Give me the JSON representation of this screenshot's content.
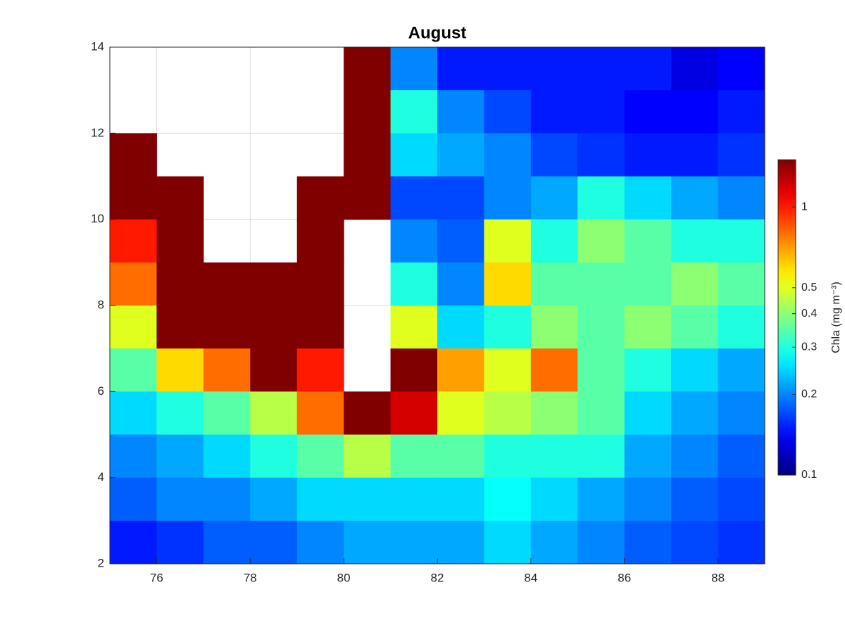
{
  "chart_data": {
    "type": "heatmap",
    "title": "August",
    "colormap": "jet",
    "grid": true,
    "x": [
      75.5,
      76.5,
      77.5,
      78.5,
      79.5,
      80.5,
      81.5,
      82.5,
      83.5,
      84.5,
      85.5,
      86.5,
      87.5,
      88.5
    ],
    "y": [
      13.5,
      12.5,
      11.5,
      10.5,
      9.5,
      8.5,
      7.5,
      6.5,
      5.5,
      4.5,
      3.5,
      2.5
    ],
    "values": [
      [
        null,
        null,
        null,
        null,
        null,
        1.5,
        0.2,
        0.15,
        0.15,
        0.15,
        0.15,
        0.15,
        0.13,
        0.14
      ],
      [
        null,
        null,
        null,
        null,
        null,
        1.5,
        0.3,
        0.2,
        0.17,
        0.15,
        0.15,
        0.14,
        0.14,
        0.15
      ],
      [
        1.5,
        null,
        null,
        null,
        null,
        1.5,
        0.25,
        0.22,
        0.2,
        0.17,
        0.16,
        0.15,
        0.15,
        0.16
      ],
      [
        1.5,
        1.5,
        null,
        null,
        1.5,
        1.5,
        0.17,
        0.17,
        0.2,
        0.22,
        0.3,
        0.25,
        0.22,
        0.2
      ],
      [
        1.0,
        1.5,
        null,
        null,
        1.5,
        null,
        0.2,
        0.18,
        0.5,
        0.3,
        0.4,
        0.35,
        0.3,
        0.3
      ],
      [
        0.8,
        1.5,
        1.5,
        1.5,
        1.5,
        null,
        0.3,
        0.2,
        0.6,
        0.35,
        0.35,
        0.35,
        0.4,
        0.35
      ],
      [
        0.5,
        1.5,
        1.5,
        1.5,
        1.5,
        null,
        0.5,
        0.25,
        0.3,
        0.4,
        0.35,
        0.4,
        0.35,
        0.3
      ],
      [
        0.35,
        0.6,
        0.8,
        1.5,
        1.0,
        null,
        1.5,
        0.7,
        0.5,
        0.8,
        0.35,
        0.3,
        0.25,
        0.22
      ],
      [
        0.25,
        0.3,
        0.35,
        0.45,
        0.8,
        1.5,
        1.2,
        0.5,
        0.45,
        0.4,
        0.35,
        0.25,
        0.22,
        0.2
      ],
      [
        0.2,
        0.22,
        0.25,
        0.3,
        0.35,
        0.45,
        0.35,
        0.35,
        0.3,
        0.3,
        0.3,
        0.22,
        0.2,
        0.18
      ],
      [
        0.18,
        0.2,
        0.2,
        0.22,
        0.25,
        0.25,
        0.25,
        0.25,
        0.28,
        0.25,
        0.22,
        0.2,
        0.18,
        0.17
      ],
      [
        0.15,
        0.16,
        0.18,
        0.18,
        0.2,
        0.22,
        0.22,
        0.22,
        0.25,
        0.22,
        0.2,
        0.18,
        0.17,
        0.16
      ]
    ],
    "xlim": [
      75,
      89
    ],
    "ylim": [
      2,
      14
    ],
    "xticks": [
      76,
      78,
      80,
      82,
      84,
      86,
      88
    ],
    "yticks": [
      2,
      4,
      6,
      8,
      10,
      12,
      14
    ],
    "colorbar": {
      "label": "Chla (mg m⁻³)",
      "scale": "log",
      "lim": [
        0.1,
        1.5
      ],
      "ticks": [
        0.1,
        0.2,
        0.3,
        0.4,
        0.5,
        1
      ]
    }
  }
}
